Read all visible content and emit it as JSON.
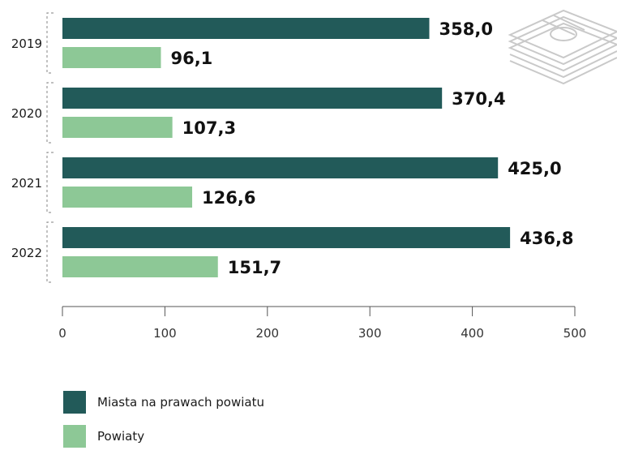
{
  "chart_data": {
    "type": "bar",
    "orientation": "horizontal",
    "categories": [
      "2019",
      "2020",
      "2021",
      "2022"
    ],
    "series": [
      {
        "name": "Miasta na prawach powiatu",
        "values": [
          358.0,
          370.4,
          425.0,
          436.8
        ],
        "labels": [
          "358,0",
          "370,4",
          "425,0",
          "436,8"
        ],
        "color": "#225a59"
      },
      {
        "name": "Powiaty",
        "values": [
          96.1,
          107.3,
          126.6,
          151.7
        ],
        "labels": [
          "96,1",
          "107,3",
          "126,6",
          "151,7"
        ],
        "color": "#8dc896"
      }
    ],
    "xlim": [
      0,
      500
    ],
    "xticks": [
      "0",
      "100",
      "200",
      "300",
      "400",
      "500"
    ],
    "grid": false,
    "legend_position": "bottom-left"
  },
  "icon": "money-stack-icon"
}
